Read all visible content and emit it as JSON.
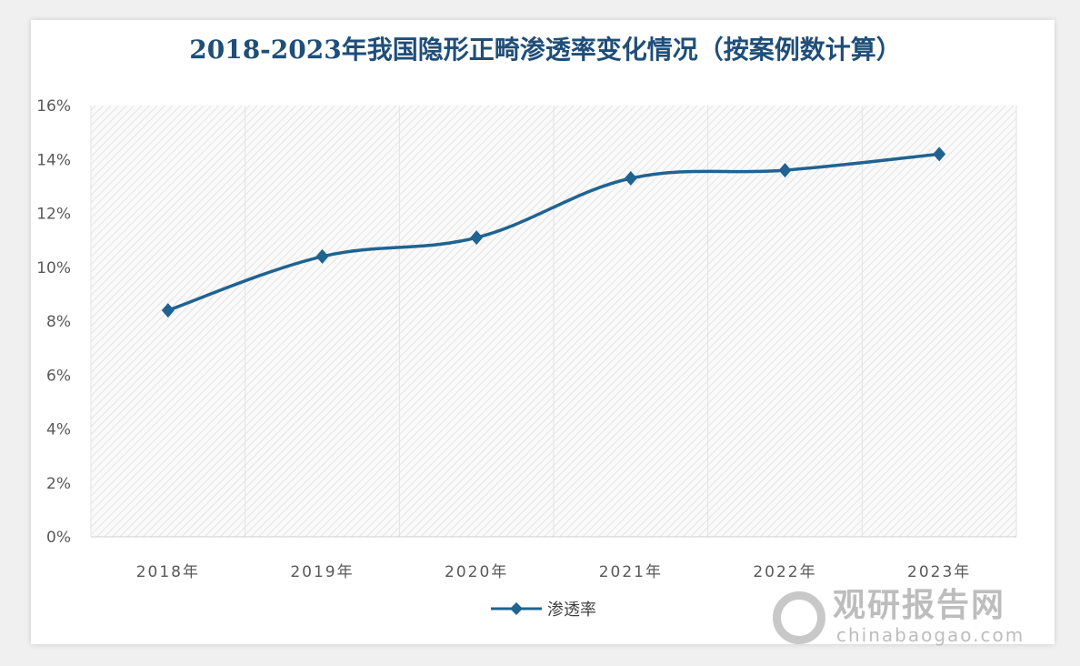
{
  "chart_data": {
    "type": "line",
    "title": "2018-2023年我国隐形正畸渗透率变化情况（按案例数计算）",
    "categories": [
      "2018年",
      "2019年",
      "2020年",
      "2021年",
      "2022年",
      "2023年"
    ],
    "series": [
      {
        "name": "渗透率",
        "values": [
          8.4,
          10.4,
          11.1,
          13.3,
          13.6,
          14.2
        ],
        "color": "#1f6391"
      }
    ],
    "yticks": [
      "0%",
      "2%",
      "4%",
      "6%",
      "8%",
      "10%",
      "12%",
      "14%",
      "16%"
    ],
    "ylim": [
      0,
      16
    ],
    "yunit": "%",
    "grid": "vertical",
    "smooth": true,
    "marker": "diamond",
    "legend": "bottom",
    "plot_background": "diagonal-hatch"
  },
  "watermark": {
    "cn": "观研报告网",
    "en": "chinabaogao.com"
  }
}
